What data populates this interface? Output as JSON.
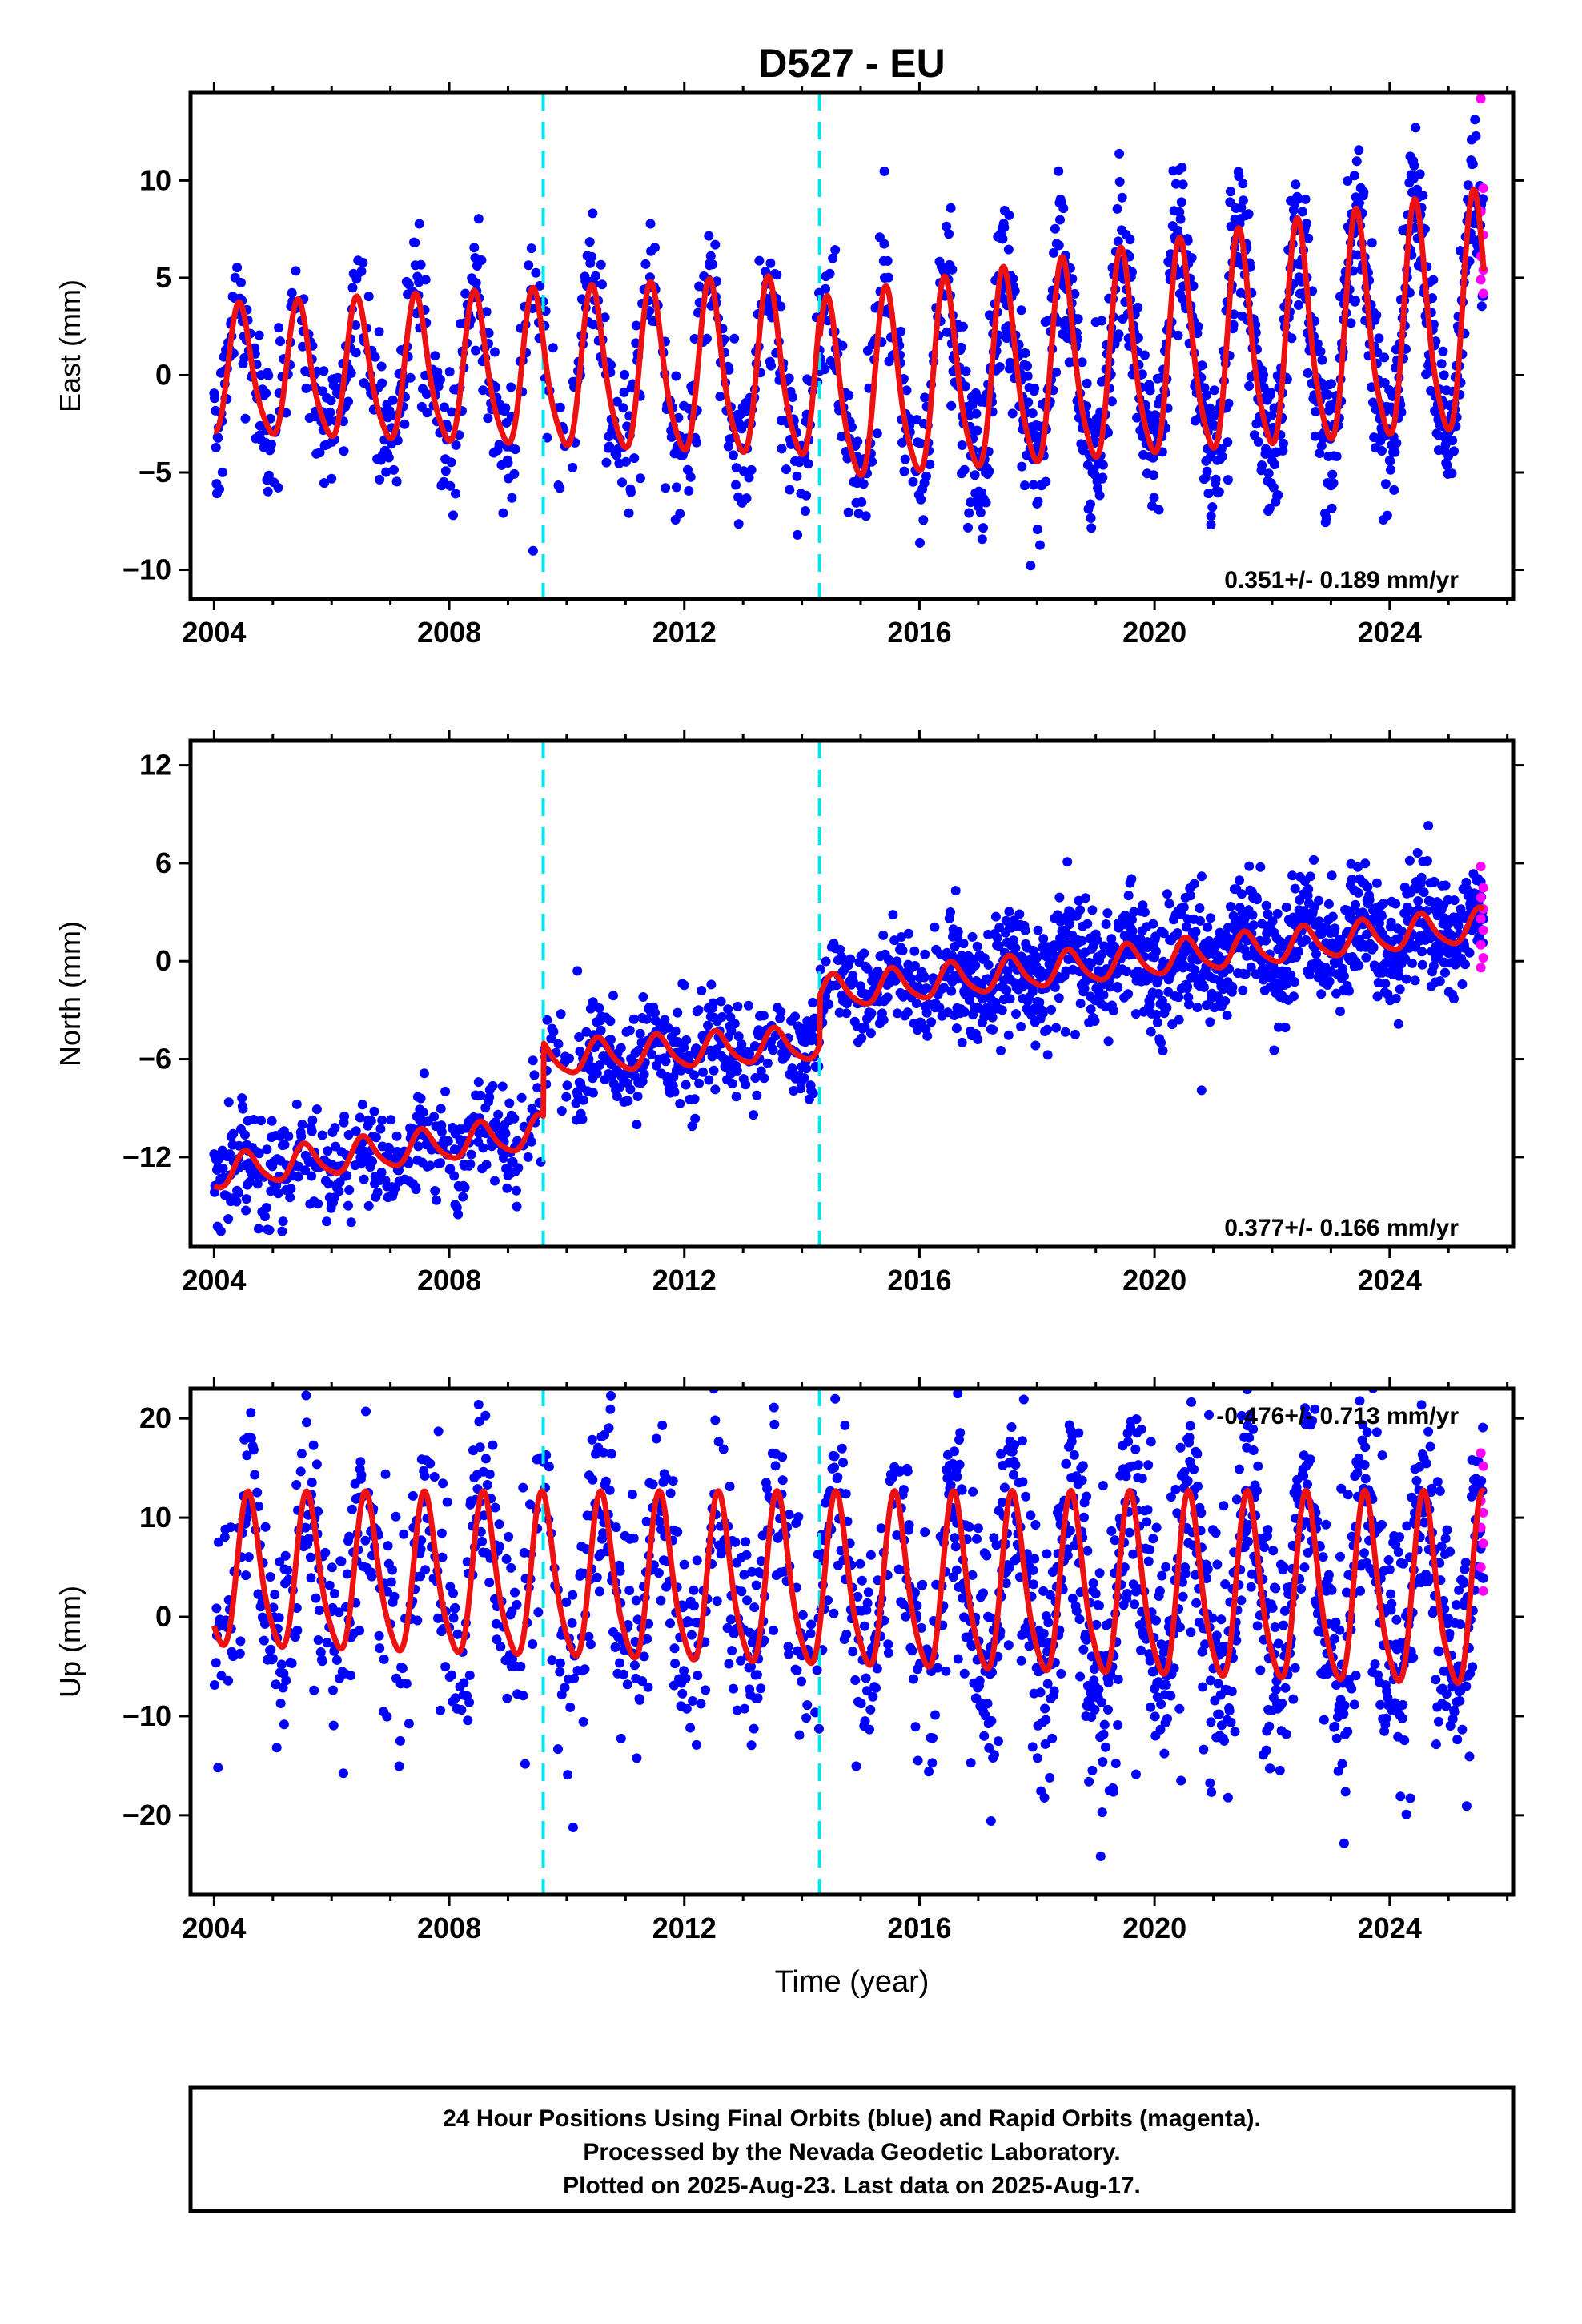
{
  "title": "D527 - EU",
  "chart_data": [
    {
      "type": "scatter",
      "component": "East",
      "ylabel": "East (mm)",
      "ylim": [
        -11.5,
        14.5
      ],
      "yticks": [
        -10,
        -5,
        0,
        5,
        10
      ],
      "xlim": [
        2003.6,
        2026.1
      ],
      "xticks": [
        2004,
        2008,
        2012,
        2016,
        2020,
        2024
      ],
      "offsets": [
        2009.6,
        2014.3
      ],
      "rate_text": "0.351+/- 0.189 mm/yr",
      "rate_position": "bottom-right",
      "model": {
        "x0": 2004.0,
        "x1": 2025.6,
        "segments": [
          {
            "start": 2004.0,
            "end": 2009.6,
            "value_at_start": 0.0,
            "trend": 0.0
          },
          {
            "start": 2009.6,
            "end": 2014.3,
            "value_at_start": 0.0,
            "trend": 0.0
          },
          {
            "start": 2014.3,
            "end": 2025.6,
            "value_at_start": -1.2,
            "trend": 0.35
          }
        ],
        "annual_amplitude": 3.2,
        "annual_peak": 0.45,
        "amplitude_growth": 0.04
      },
      "scatter": {
        "spread": 1.8,
        "rapid_points": [
          14.2,
          9.6,
          8.4,
          7.2,
          6.1,
          5.4,
          4.9,
          4.2
        ]
      },
      "final_color": "#0000ff",
      "rapid_color": "#ff00ff",
      "model_color": "#ee1111",
      "offset_color": "#00e5ee"
    },
    {
      "type": "scatter",
      "component": "North",
      "ylabel": "North (mm)",
      "ylim": [
        -17.5,
        13.5
      ],
      "yticks": [
        -12,
        -6,
        0,
        6,
        12
      ],
      "xlim": [
        2003.6,
        2026.1
      ],
      "xticks": [
        2004,
        2008,
        2012,
        2016,
        2020,
        2024
      ],
      "offsets": [
        2009.6,
        2014.3
      ],
      "rate_text": "0.377+/- 0.166 mm/yr",
      "rate_position": "bottom-right",
      "model": {
        "x0": 2004.0,
        "x1": 2025.6,
        "segments": [
          {
            "start": 2004.0,
            "end": 2009.6,
            "value_at_start": -13.0,
            "trend": 0.45
          },
          {
            "start": 2009.6,
            "end": 2014.3,
            "value_at_start": -6.0,
            "trend": 0.2
          },
          {
            "start": 2014.3,
            "end": 2025.6,
            "value_at_start": -2.0,
            "trend": 0.37
          }
        ],
        "annual_amplitude": 1.0,
        "annual_peak": 0.55,
        "amplitude_growth": 0.0
      },
      "scatter": {
        "spread": 1.6,
        "rapid_points": [
          5.8,
          4.5,
          3.9,
          3.2,
          2.6,
          1.9,
          1.0,
          0.2,
          -0.4
        ]
      },
      "final_color": "#0000ff",
      "rapid_color": "#ff00ff",
      "model_color": "#ee1111",
      "offset_color": "#00e5ee"
    },
    {
      "type": "scatter",
      "component": "Up",
      "xlabel": "Time (year)",
      "ylabel": "Up (mm)",
      "ylim": [
        -28,
        23
      ],
      "yticks": [
        -20,
        -10,
        0,
        10,
        20
      ],
      "xlim": [
        2003.6,
        2026.1
      ],
      "xticks": [
        2004,
        2008,
        2012,
        2016,
        2020,
        2024
      ],
      "offsets": [
        2009.6,
        2014.3
      ],
      "rate_text": "-0.476+/- 0.713 mm/yr",
      "rate_position": "top-right",
      "model": {
        "x0": 2004.0,
        "x1": 2025.6,
        "segments": [
          {
            "start": 2004.0,
            "end": 2025.6,
            "value_at_start": 4.0,
            "trend": -0.1
          }
        ],
        "annual_amplitude": 7.5,
        "annual_peak": 0.6,
        "amplitude_growth": 0.012
      },
      "scatter": {
        "spread": 5.5,
        "rapid_points": [
          16.5,
          15.2,
          11.7,
          10.5,
          9.0,
          7.4,
          5.0,
          2.6
        ]
      },
      "final_color": "#0000ff",
      "rapid_color": "#ff00ff",
      "model_color": "#ee1111",
      "offset_color": "#00e5ee"
    }
  ],
  "caption": [
    "24 Hour Positions Using Final Orbits (blue) and Rapid Orbits (magenta).",
    "Processed by the Nevada Geodetic Laboratory.",
    "Plotted on 2025-Aug-23. Last data on 2025-Aug-17."
  ]
}
